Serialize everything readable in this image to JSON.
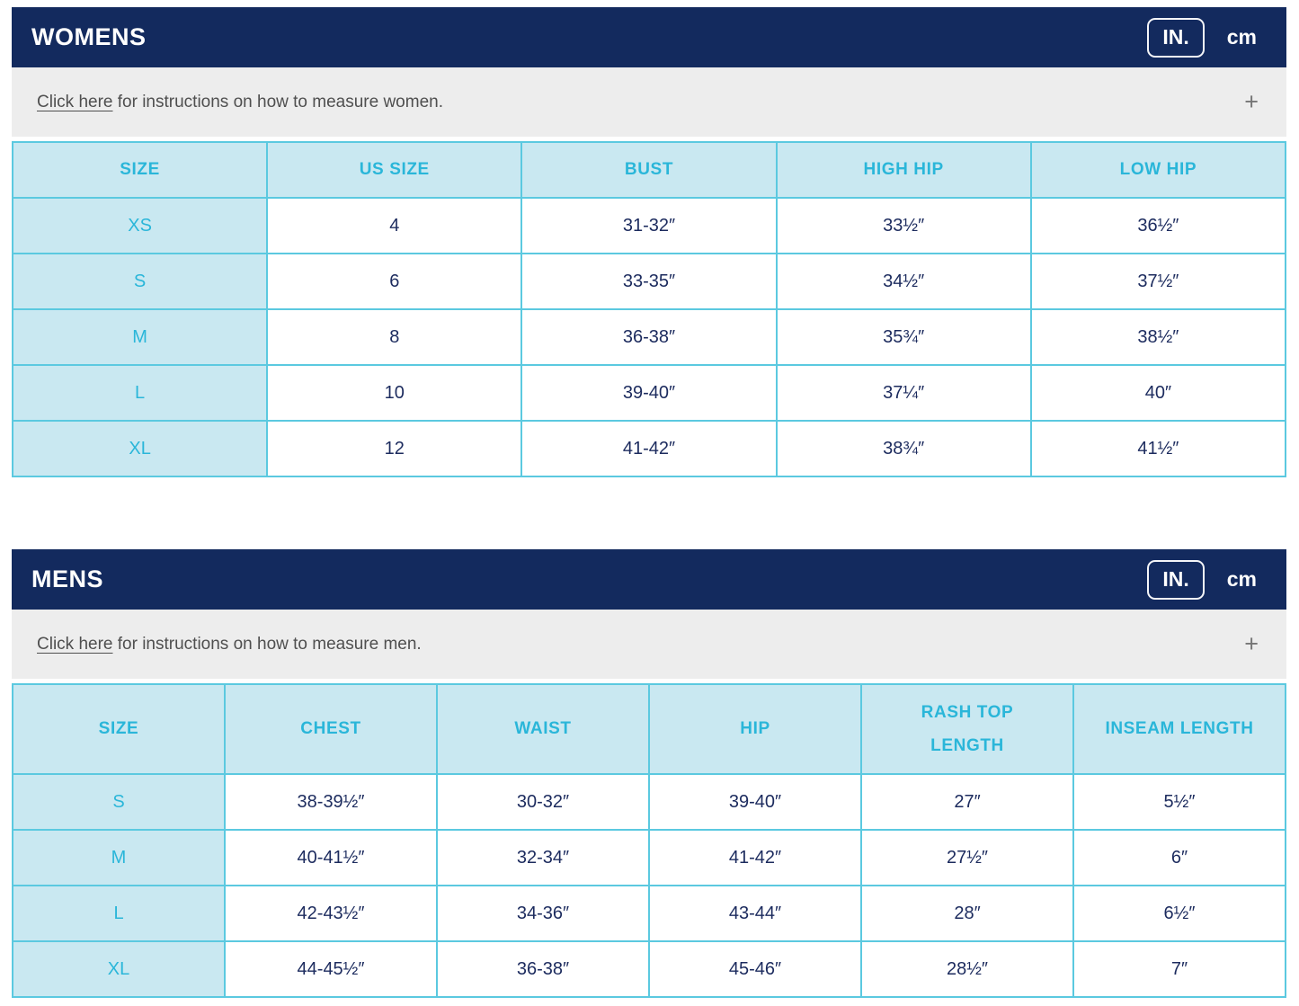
{
  "units": {
    "in": "IN.",
    "cm": "cm"
  },
  "womens": {
    "title": "WOMENS",
    "instruction_link": "Click here",
    "instruction_rest": " for instructions on how to measure women.",
    "expand_icon": "+",
    "table": {
      "headers": [
        "SIZE",
        "US SIZE",
        "BUST",
        "HIGH HIP",
        "LOW HIP"
      ],
      "rows": [
        [
          "XS",
          "4",
          "31-32″",
          "33½″",
          "36½″"
        ],
        [
          "S",
          "6",
          "33-35″",
          "34½″",
          "37½″"
        ],
        [
          "M",
          "8",
          "36-38″",
          "35¾″",
          "38½″"
        ],
        [
          "L",
          "10",
          "39-40″",
          "37¼″",
          "40″"
        ],
        [
          "XL",
          "12",
          "41-42″",
          "38¾″",
          "41½″"
        ]
      ]
    }
  },
  "mens": {
    "title": "MENS",
    "instruction_link": "Click here",
    "instruction_rest": " for instructions on how to measure men.",
    "expand_icon": "+",
    "table": {
      "headers": [
        "SIZE",
        "CHEST",
        "WAIST",
        "HIP",
        "RASH TOP LENGTH",
        "INSEAM LENGTH"
      ],
      "rows": [
        [
          "S",
          "38-39½″",
          "30-32″",
          "39-40″",
          "27″",
          "5½″"
        ],
        [
          "M",
          "40-41½″",
          "32-34″",
          "41-42″",
          "27½″",
          "6″"
        ],
        [
          "L",
          "42-43½″",
          "34-36″",
          "43-44″",
          "28″",
          "6½″"
        ],
        [
          "XL",
          "44-45½″",
          "36-38″",
          "45-46″",
          "28½″",
          "7″"
        ]
      ]
    }
  },
  "colors": {
    "navy": "#132a5e",
    "cyan_text": "#2ab6d9",
    "table_header_bg": "#c9e8f1",
    "border_cyan": "#5bc9e0",
    "instruction_bg": "#ededed",
    "instruction_text": "#4f4f4f",
    "value_text": "#1c2b5e"
  }
}
